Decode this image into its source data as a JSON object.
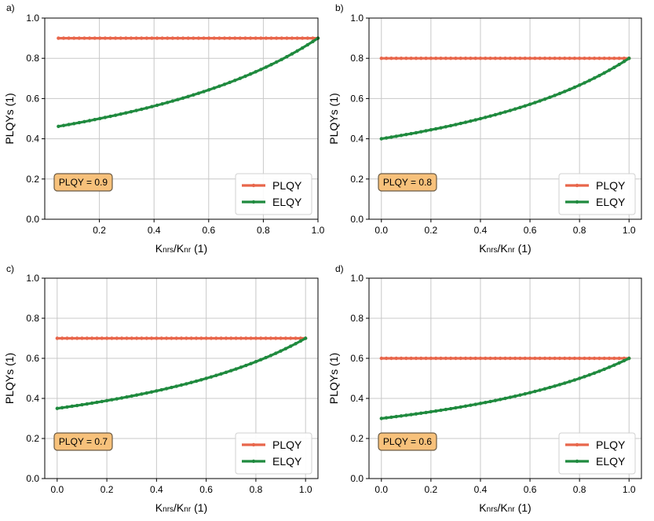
{
  "colors": {
    "plqy": "#e8664b",
    "elqy": "#1f8a3e",
    "annotation_fill": "#f7c17b",
    "annotation_edge": "#6b5a43",
    "grid": "#c8c8c8"
  },
  "chart_data": [
    {
      "type": "line",
      "panel_label": "a)",
      "xlabel": "K",
      "xlabel_sub1": "nrs",
      "xlabel_mid": "/K",
      "xlabel_sub2": "nr",
      "xlabel_unit": " (1)",
      "ylabel": "PLQYs (1)",
      "xlim": [
        0.0,
        1.0
      ],
      "x_range_data": [
        0.05,
        1.0
      ],
      "ylim": [
        0.0,
        1.0
      ],
      "xticks": [
        0.2,
        0.4,
        0.6,
        0.8,
        1.0
      ],
      "xtick_labels": [
        "0.2",
        "0.4",
        "0.6",
        "0.8",
        "1.0"
      ],
      "yticks": [
        0.0,
        0.2,
        0.4,
        0.6,
        0.8,
        1.0
      ],
      "ytick_labels": [
        "0.0",
        "0.2",
        "0.4",
        "0.6",
        "0.8",
        "1.0"
      ],
      "grid": true,
      "legend": "lower-right",
      "annotation": "PLQY = 0.9",
      "series": [
        {
          "name": "PLQY",
          "color": "#e8664b",
          "kind": "constant",
          "value": 0.9
        },
        {
          "name": "ELQY",
          "color": "#1f8a3e",
          "kind": "elqy",
          "plqy": 0.9
        }
      ]
    },
    {
      "type": "line",
      "panel_label": "b)",
      "xlabel": "K",
      "xlabel_sub1": "nrs",
      "xlabel_mid": "/K",
      "xlabel_sub2": "nr",
      "xlabel_unit": " (1)",
      "ylabel": "PLQYs (1)",
      "xlim": [
        -0.05,
        1.05
      ],
      "x_range_data": [
        0.0,
        1.0
      ],
      "ylim": [
        0.0,
        1.0
      ],
      "xticks": [
        0.0,
        0.2,
        0.4,
        0.6,
        0.8,
        1.0
      ],
      "xtick_labels": [
        "0.0",
        "0.2",
        "0.4",
        "0.6",
        "0.8",
        "1.0"
      ],
      "yticks": [
        0.0,
        0.2,
        0.4,
        0.6,
        0.8,
        1.0
      ],
      "ytick_labels": [
        "0.0",
        "0.2",
        "0.4",
        "0.6",
        "0.8",
        "1.0"
      ],
      "grid": true,
      "legend": "lower-right",
      "annotation": "PLQY = 0.8",
      "series": [
        {
          "name": "PLQY",
          "color": "#e8664b",
          "kind": "constant",
          "value": 0.8
        },
        {
          "name": "ELQY",
          "color": "#1f8a3e",
          "kind": "elqy",
          "plqy": 0.8
        }
      ]
    },
    {
      "type": "line",
      "panel_label": "c)",
      "xlabel": "K",
      "xlabel_sub1": "nrs",
      "xlabel_mid": "/K",
      "xlabel_sub2": "nr",
      "xlabel_unit": " (1)",
      "ylabel": "PLQYs (1)",
      "xlim": [
        -0.05,
        1.05
      ],
      "x_range_data": [
        0.0,
        1.0
      ],
      "ylim": [
        0.0,
        1.0
      ],
      "xticks": [
        0.0,
        0.2,
        0.4,
        0.6,
        0.8,
        1.0
      ],
      "xtick_labels": [
        "0.0",
        "0.2",
        "0.4",
        "0.6",
        "0.8",
        "1.0"
      ],
      "yticks": [
        0.0,
        0.2,
        0.4,
        0.6,
        0.8,
        1.0
      ],
      "ytick_labels": [
        "0.0",
        "0.2",
        "0.4",
        "0.6",
        "0.8",
        "1.0"
      ],
      "grid": true,
      "legend": "lower-right",
      "annotation": "PLQY = 0.7",
      "series": [
        {
          "name": "PLQY",
          "color": "#e8664b",
          "kind": "constant",
          "value": 0.7
        },
        {
          "name": "ELQY",
          "color": "#1f8a3e",
          "kind": "elqy",
          "plqy": 0.7
        }
      ]
    },
    {
      "type": "line",
      "panel_label": "d)",
      "xlabel": "K",
      "xlabel_sub1": "nrs",
      "xlabel_mid": "/K",
      "xlabel_sub2": "nr",
      "xlabel_unit": " (1)",
      "ylabel": "PLQYs (1)",
      "xlim": [
        -0.05,
        1.05
      ],
      "x_range_data": [
        0.0,
        1.0
      ],
      "ylim": [
        0.0,
        1.0
      ],
      "xticks": [
        0.0,
        0.2,
        0.4,
        0.6,
        0.8,
        1.0
      ],
      "xtick_labels": [
        "0.0",
        "0.2",
        "0.4",
        "0.6",
        "0.8",
        "1.0"
      ],
      "yticks": [
        0.0,
        0.2,
        0.4,
        0.6,
        0.8,
        1.0
      ],
      "ytick_labels": [
        "0.0",
        "0.2",
        "0.4",
        "0.6",
        "0.8",
        "1.0"
      ],
      "grid": true,
      "legend": "lower-right",
      "annotation": "PLQY = 0.6",
      "series": [
        {
          "name": "PLQY",
          "color": "#e8664b",
          "kind": "constant",
          "value": 0.6
        },
        {
          "name": "ELQY",
          "color": "#1f8a3e",
          "kind": "elqy",
          "plqy": 0.6
        }
      ]
    }
  ]
}
